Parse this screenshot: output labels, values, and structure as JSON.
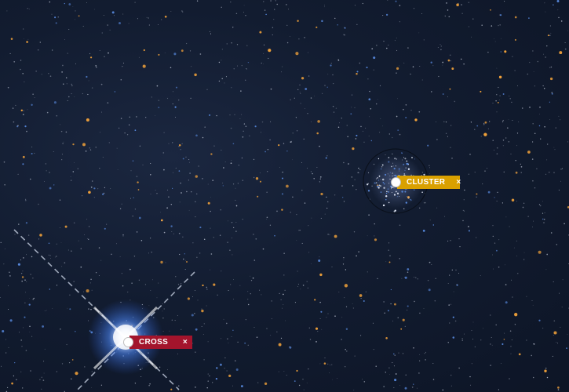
{
  "viewer": {
    "background_color": "#121c30"
  },
  "markers": [
    {
      "id": "cluster",
      "label": "CLUSTER",
      "close_glyph": "×",
      "color": "#d9a000",
      "dot_color": "#ffffff",
      "icon": "marker-dot-icon",
      "has_circle": true
    },
    {
      "id": "cross",
      "label": "CROSS",
      "close_glyph": "×",
      "color": "#a3142c",
      "dot_color": "#ffffff",
      "icon": "marker-dot-icon",
      "has_circle": false
    }
  ],
  "stars": {
    "warm_color": "#f2a23a",
    "cool_color": "#5b8ee6",
    "white_color": "#e8eefc"
  },
  "bright_star": {
    "glow_color": "#4f8cff",
    "core_color": "#ffffff"
  }
}
